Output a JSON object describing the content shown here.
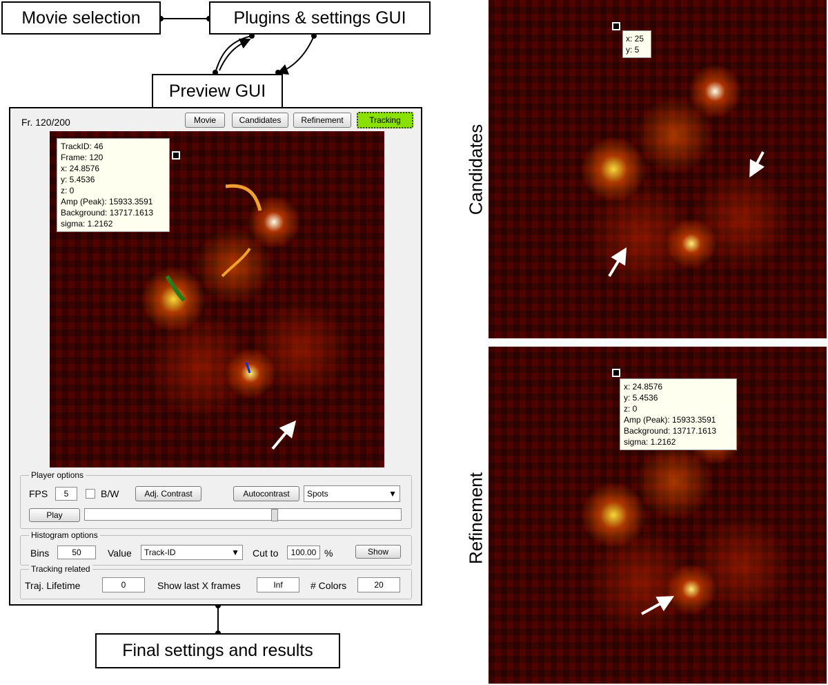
{
  "diagram": {
    "nodes": [
      {
        "label": "Movie selection"
      },
      {
        "label": "Plugins & settings GUI"
      },
      {
        "label": "Preview GUI"
      },
      {
        "label": "Final settings and results"
      }
    ]
  },
  "preview_gui": {
    "frame": "Fr. 120/200",
    "tabs": [
      "Movie",
      "Candidates",
      "Refinement",
      "Tracking"
    ],
    "tooltip": [
      "TrackID: 46",
      "Frame: 120",
      "x: 24.8576",
      "y: 5.4536",
      "z: 0",
      "Amp (Peak): 15933.3591",
      "Background: 13717.1613",
      "sigma: 1.2162"
    ],
    "player_options": {
      "legend": "Player options",
      "fps_label": "FPS",
      "fps": "5",
      "bw": "B/W",
      "adj_contrast": "Adj. Contrast",
      "autocontrast": "Autocontrast",
      "mode": "Spots",
      "play": "Play"
    },
    "histogram_options": {
      "legend": "Histogram options",
      "bins_label": "Bins",
      "bins": "50",
      "value_label": "Value",
      "value": "Track-ID",
      "cut_label": "Cut to",
      "cut": "100.00",
      "cut_unit": "%",
      "show": "Show"
    },
    "tracking_related": {
      "legend": "Tracking related",
      "lifetime_label": "Traj. Lifetime",
      "lifetime": "0",
      "last_label": "Show last X frames",
      "last": "Inf",
      "colors_label": "# Colors",
      "colors": "20"
    }
  },
  "panels": [
    {
      "label": "Candidates",
      "tooltip": [
        "x: 25",
        "y: 5"
      ]
    },
    {
      "label": "Refinement",
      "tooltip": [
        "x: 24.8576",
        "y: 5.4536",
        "z: 0",
        "Amp (Peak): 15933.3591",
        "Background: 13717.1613",
        "sigma: 1.2162"
      ]
    }
  ]
}
